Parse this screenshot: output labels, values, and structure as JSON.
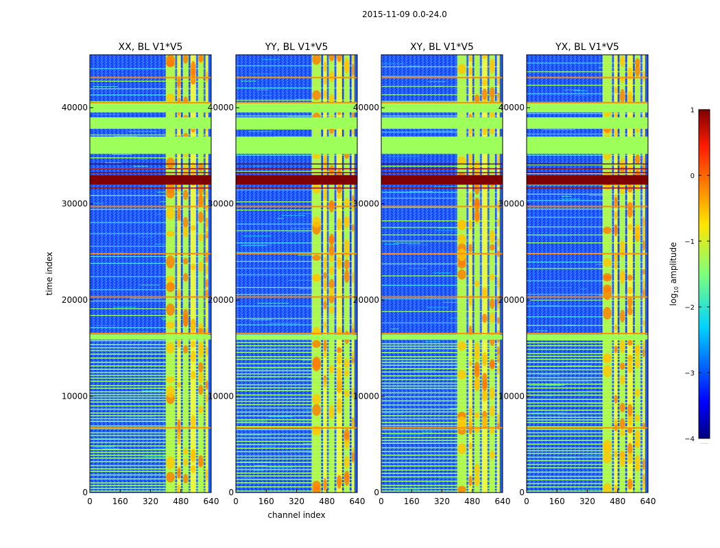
{
  "figure": {
    "suptitle": "2015-11-09 0.0-24.0"
  },
  "chart_data": [
    {
      "type": "heatmap",
      "title": "XX, BL V1*V5",
      "xlabel": "",
      "ylabel": "time index",
      "xlim": [
        0,
        640
      ],
      "ylim": [
        0,
        45500
      ],
      "x_ticks": [
        0,
        160,
        320,
        480,
        640
      ],
      "y_ticks": [
        0,
        10000,
        20000,
        30000,
        40000
      ],
      "rfi_channel_range": [
        400,
        640
      ],
      "flagged_time_bands": [
        [
          32000,
          33000
        ],
        [
          35200,
          37000
        ],
        [
          37800,
          39000
        ],
        [
          39500,
          40600
        ],
        [
          15900,
          16400
        ]
      ]
    },
    {
      "type": "heatmap",
      "title": "YY, BL V1*V5",
      "xlabel": "channel index",
      "ylabel": "",
      "xlim": [
        0,
        640
      ],
      "ylim": [
        0,
        45500
      ],
      "x_ticks": [
        0,
        160,
        320,
        480,
        640
      ],
      "y_ticks": [
        0,
        10000,
        20000,
        30000,
        40000
      ],
      "rfi_channel_range": [
        400,
        640
      ],
      "flagged_time_bands": [
        [
          32000,
          33000
        ],
        [
          35200,
          37000
        ],
        [
          37800,
          39000
        ],
        [
          39500,
          40600
        ],
        [
          15900,
          16400
        ]
      ]
    },
    {
      "type": "heatmap",
      "title": "XY, BL V1*V5",
      "xlabel": "",
      "ylabel": "",
      "xlim": [
        0,
        640
      ],
      "ylim": [
        0,
        45500
      ],
      "x_ticks": [
        0,
        160,
        320,
        480,
        640
      ],
      "y_ticks": [
        0,
        10000,
        20000,
        30000,
        40000
      ],
      "rfi_channel_range": [
        400,
        640
      ],
      "flagged_time_bands": [
        [
          32000,
          33000
        ],
        [
          35200,
          37000
        ],
        [
          37800,
          39000
        ],
        [
          39500,
          40600
        ],
        [
          15900,
          16400
        ]
      ]
    },
    {
      "type": "heatmap",
      "title": "YX, BL V1*V5",
      "xlabel": "",
      "ylabel": "",
      "xlim": [
        0,
        640
      ],
      "ylim": [
        0,
        45500
      ],
      "x_ticks": [
        0,
        160,
        320,
        480,
        640
      ],
      "y_ticks": [
        0,
        10000,
        20000,
        30000,
        40000
      ],
      "rfi_channel_range": [
        400,
        640
      ],
      "flagged_time_bands": [
        [
          32000,
          33000
        ],
        [
          35200,
          37000
        ],
        [
          37800,
          39000
        ],
        [
          39500,
          40600
        ],
        [
          15900,
          16400
        ]
      ]
    }
  ],
  "colorbar": {
    "label": "log10 amplitude",
    "label_base": "log",
    "label_sub": "10",
    "label_rest": " amplitude",
    "range": [
      -4,
      1
    ],
    "ticks": [
      1,
      0,
      -1,
      -2,
      -3,
      -4
    ],
    "tick_labels": [
      "1",
      "0",
      "−1",
      "−2",
      "−3",
      "−4"
    ],
    "colormap": "jet",
    "footnote": "......"
  },
  "colors": {
    "axis": "#000000",
    "background": "#ffffff"
  }
}
